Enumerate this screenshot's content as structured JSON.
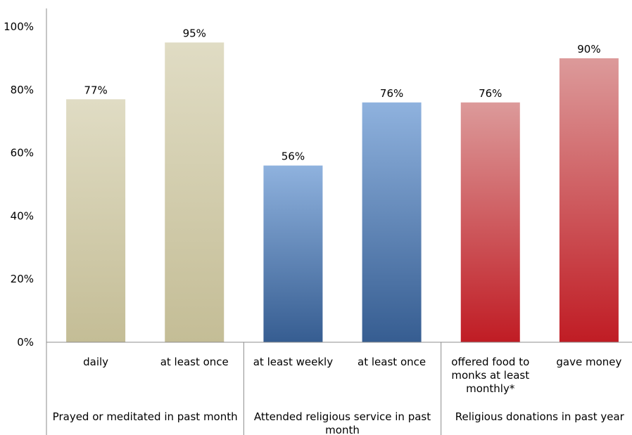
{
  "chart_data": {
    "type": "bar",
    "categories": [
      [
        "daily"
      ],
      [
        "at least once"
      ],
      [
        "at least weekly"
      ],
      [
        "at least once"
      ],
      [
        "offered food to",
        "monks at least",
        "monthly*"
      ],
      [
        "gave money"
      ]
    ],
    "values": [
      77,
      95,
      56,
      76,
      76,
      90
    ],
    "value_labels": [
      "77%",
      "95%",
      "56%",
      "76%",
      "76%",
      "90%"
    ],
    "groups": [
      {
        "label": [
          "Prayed or meditated in past month"
        ],
        "category_count": 2,
        "color_top": "#e0dcc4",
        "color_bottom": "#c4bd96"
      },
      {
        "label": [
          "Attended religious service in past",
          "month"
        ],
        "category_count": 2,
        "color_top": "#8fb2de",
        "color_bottom": "#365d91"
      },
      {
        "label": [
          "Religious donations in past year"
        ],
        "category_count": 2,
        "color_top": "#dc9a9a",
        "color_bottom": "#c01c24"
      }
    ],
    "y_ticks": [
      "0%",
      "20%",
      "40%",
      "60%",
      "80%",
      "100%"
    ],
    "ylim": [
      0,
      100
    ],
    "title": "",
    "xlabel": "",
    "ylabel": "",
    "grid": false,
    "legend": "none"
  }
}
